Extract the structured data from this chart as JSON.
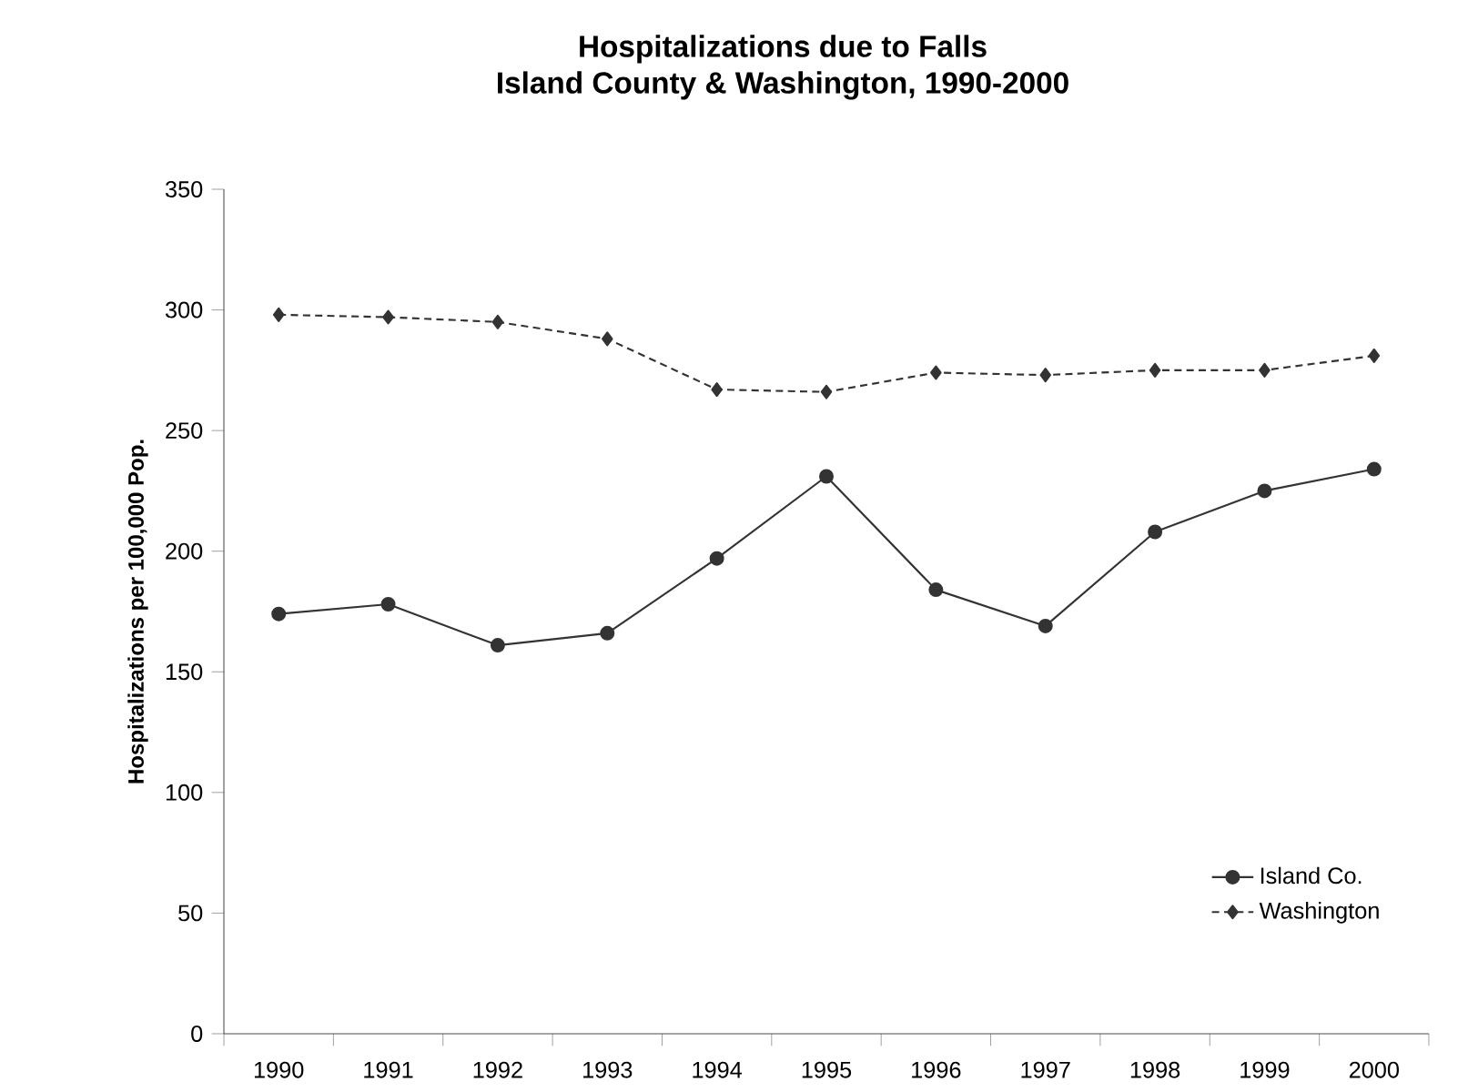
{
  "chart_data": {
    "type": "line",
    "title": "Hospitalizations due to Falls",
    "subtitle": "Island County & Washington, 1990-2000",
    "ylabel": "Hospitalizations per 100,000 Pop.",
    "categories": [
      "1990",
      "1991",
      "1992",
      "1993",
      "1994",
      "1995",
      "1996",
      "1997",
      "1998",
      "1999",
      "2000"
    ],
    "series": [
      {
        "name": "Island Co.",
        "color": "#333333",
        "marker": "circle",
        "line_style": "solid",
        "values": [
          174,
          178,
          161,
          166,
          197,
          231,
          184,
          169,
          208,
          225,
          234
        ]
      },
      {
        "name": "Washington",
        "color": "#333333",
        "marker": "diamond",
        "line_style": "dashed",
        "values": [
          298,
          297,
          295,
          288,
          267,
          266,
          274,
          273,
          275,
          275,
          281
        ]
      }
    ],
    "ylim": [
      0,
      350
    ],
    "yticks": [
      0,
      50,
      100,
      150,
      200,
      250,
      300,
      350
    ],
    "grid": false,
    "legend": "bottom right"
  }
}
